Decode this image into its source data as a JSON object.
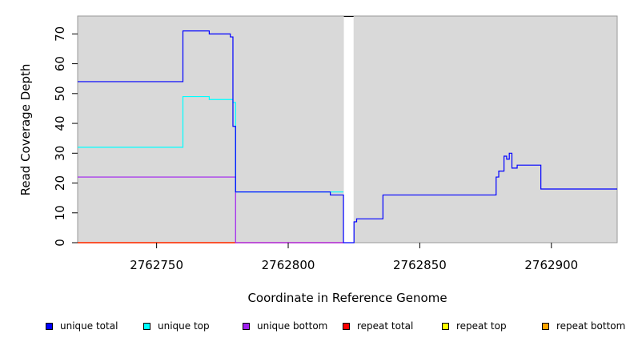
{
  "chart_data": {
    "type": "line",
    "xlabel": "Coordinate in Reference Genome",
    "ylabel": "Read Coverage Depth",
    "xlim": [
      2762720,
      2762925
    ],
    "ylim": [
      0,
      76
    ],
    "x_ticks": [
      2762750,
      2762800,
      2762850,
      2762900
    ],
    "y_ticks": [
      0,
      10,
      20,
      30,
      40,
      50,
      60,
      70
    ],
    "background": "#d9d9d9",
    "gap": [
      2762821,
      2762825
    ],
    "grid": false,
    "legend_position": "bottom",
    "series": [
      {
        "name": "unique total",
        "color": "#0000ff",
        "points": [
          [
            2762720,
            54
          ],
          [
            2762760,
            54
          ],
          [
            2762760,
            71
          ],
          [
            2762770,
            71
          ],
          [
            2762770,
            70
          ],
          [
            2762778,
            70
          ],
          [
            2762778,
            69
          ],
          [
            2762779,
            69
          ],
          [
            2762779,
            39
          ],
          [
            2762780,
            39
          ],
          [
            2762780,
            17
          ],
          [
            2762816,
            17
          ],
          [
            2762816,
            16
          ],
          [
            2762821,
            16
          ],
          [
            2762821,
            0
          ],
          [
            2762825,
            0
          ],
          [
            2762825,
            7
          ],
          [
            2762826,
            7
          ],
          [
            2762826,
            8
          ],
          [
            2762836,
            8
          ],
          [
            2762836,
            16
          ],
          [
            2762879,
            16
          ],
          [
            2762879,
            22
          ],
          [
            2762880,
            22
          ],
          [
            2762880,
            24
          ],
          [
            2762882,
            24
          ],
          [
            2762882,
            29
          ],
          [
            2762883,
            29
          ],
          [
            2762883,
            28
          ],
          [
            2762884,
            28
          ],
          [
            2762884,
            30
          ],
          [
            2762885,
            30
          ],
          [
            2762885,
            25
          ],
          [
            2762887,
            25
          ],
          [
            2762887,
            26
          ],
          [
            2762896,
            26
          ],
          [
            2762896,
            18
          ],
          [
            2762925,
            18
          ]
        ]
      },
      {
        "name": "unique top",
        "color": "#00ffff",
        "points": [
          [
            2762720,
            32
          ],
          [
            2762760,
            32
          ],
          [
            2762760,
            49
          ],
          [
            2762770,
            49
          ],
          [
            2762770,
            48
          ],
          [
            2762779,
            48
          ],
          [
            2762779,
            47
          ],
          [
            2762780,
            47
          ],
          [
            2762780,
            17
          ],
          [
            2762821,
            17
          ]
        ]
      },
      {
        "name": "unique bottom",
        "color": "#a020f0",
        "points": [
          [
            2762720,
            22
          ],
          [
            2762780,
            22
          ],
          [
            2762780,
            0
          ],
          [
            2762821,
            0
          ]
        ]
      },
      {
        "name": "repeat total",
        "color": "#ff0000",
        "points": [
          [
            2762720,
            0
          ],
          [
            2762821,
            0
          ]
        ]
      },
      {
        "name": "repeat top",
        "color": "#ffff00",
        "points": [
          [
            2762720,
            0
          ],
          [
            2762780,
            0
          ]
        ]
      },
      {
        "name": "repeat bottom",
        "color": "#ffa500",
        "points": [
          [
            2762720,
            0
          ],
          [
            2762780,
            0
          ]
        ]
      }
    ]
  }
}
